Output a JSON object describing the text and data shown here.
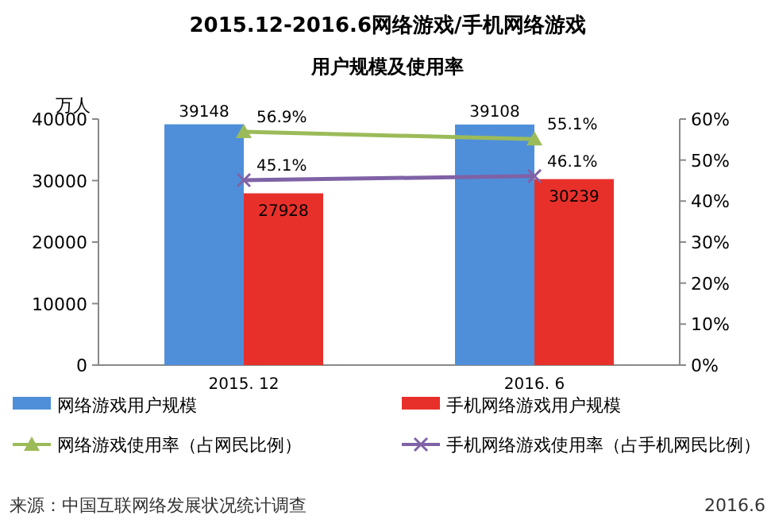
{
  "chart_data": {
    "type": "bar",
    "title": "2015.12-2016.6网络游戏/手机网络游戏",
    "subtitle": "用户规模及使用率",
    "ylabel": "万人",
    "categories": [
      "2015. 12",
      "2016. 6"
    ],
    "ylim": [
      0,
      40000
    ],
    "yticks": [
      0,
      10000,
      20000,
      30000,
      40000
    ],
    "y2lim": [
      0,
      60
    ],
    "y2ticks": [
      {
        "value": 0,
        "label": "0%"
      },
      {
        "value": 10,
        "label": "10%"
      },
      {
        "value": 20,
        "label": "20%"
      },
      {
        "value": 30,
        "label": "30%"
      },
      {
        "value": 40,
        "label": "40%"
      },
      {
        "value": 50,
        "label": "50%"
      },
      {
        "value": 60,
        "label": "60%"
      }
    ],
    "series": [
      {
        "name": "网络游戏用户规模",
        "color": "#4f8fda",
        "values": [
          39148,
          39108
        ],
        "value_labels": [
          "39148",
          "39108"
        ]
      },
      {
        "name": "手机网络游戏用户规模",
        "color": "#e8302b",
        "values": [
          27928,
          30239
        ],
        "value_labels": [
          "27928",
          "30239"
        ]
      },
      {
        "name": "网络游戏使用率（占网民比例）",
        "type": "line",
        "axis": "y2",
        "marker": "triangle",
        "color": "#9bbb59",
        "values": [
          56.9,
          55.1
        ],
        "value_labels": [
          "56.9%",
          "55.1%"
        ]
      },
      {
        "name": "手机网络游戏使用率（占手机网民比例）",
        "type": "line",
        "axis": "y2",
        "marker": "cross",
        "color": "#7f62a6",
        "values": [
          45.1,
          46.1
        ],
        "value_labels": [
          "45.1%",
          "46.1%"
        ]
      }
    ],
    "legend": "bottom",
    "line_style": "solid",
    "annotations": [
      "来源：中国互联网络发展状况统计调查",
      "2016.6"
    ]
  }
}
